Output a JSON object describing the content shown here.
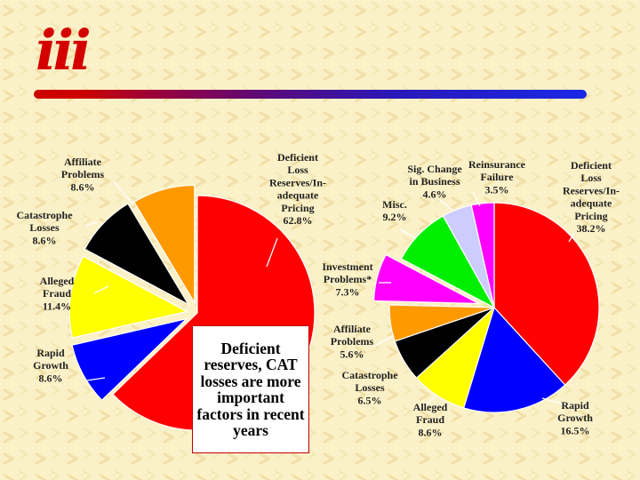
{
  "logo": {
    "text": "iii"
  },
  "callout": {
    "text": "Deficient reserves, CAT losses are more important factors in recent years"
  },
  "colors": {
    "accent": "#cc0000",
    "rule_end": "#1a28e6",
    "background": "#fbf1c8"
  },
  "chart_data": [
    {
      "type": "pie",
      "exploded": true,
      "slices": [
        {
          "label": "Deficient Loss Reserves/In-adequate Pricing",
          "value": 62.8,
          "display": "62.8%",
          "color": "#ff0000"
        },
        {
          "label": "Rapid Growth",
          "value": 8.6,
          "display": "8.6%",
          "color": "#0000ff"
        },
        {
          "label": "Alleged Fraud",
          "value": 11.4,
          "display": "11.4%",
          "color": "#ffff00"
        },
        {
          "label": "Catastrophe Losses",
          "value": 8.6,
          "display": "8.6%",
          "color": "#000000"
        },
        {
          "label": "Affiliate Problems",
          "value": 8.6,
          "display": "8.6%",
          "color": "#ff9900"
        }
      ]
    },
    {
      "type": "pie",
      "exploded": true,
      "slices": [
        {
          "label": "Deficient Loss Reserves/In-adequate Pricing",
          "value": 38.2,
          "display": "38.2%",
          "color": "#ff0000"
        },
        {
          "label": "Rapid Growth",
          "value": 16.5,
          "display": "16.5%",
          "color": "#0000ff"
        },
        {
          "label": "Alleged Fraud",
          "value": 8.6,
          "display": "8.6%",
          "color": "#ffff00"
        },
        {
          "label": "Catastrophe Losses",
          "value": 6.5,
          "display": "6.5%",
          "color": "#000000"
        },
        {
          "label": "Affiliate Problems",
          "value": 5.6,
          "display": "5.6%",
          "color": "#ff9900"
        },
        {
          "label": "Investment Problems*",
          "value": 7.3,
          "display": "7.3%",
          "color": "#ff00ff"
        },
        {
          "label": "Misc.",
          "value": 9.2,
          "display": "9.2%",
          "color": "#00ee00"
        },
        {
          "label": "Sig. Change in Business",
          "value": 4.6,
          "display": "4.6%",
          "color": "#ccccff"
        },
        {
          "label": "Reinsurance Failure",
          "value": 3.5,
          "display": "3.5%",
          "color": "#ff00ff"
        }
      ]
    }
  ]
}
